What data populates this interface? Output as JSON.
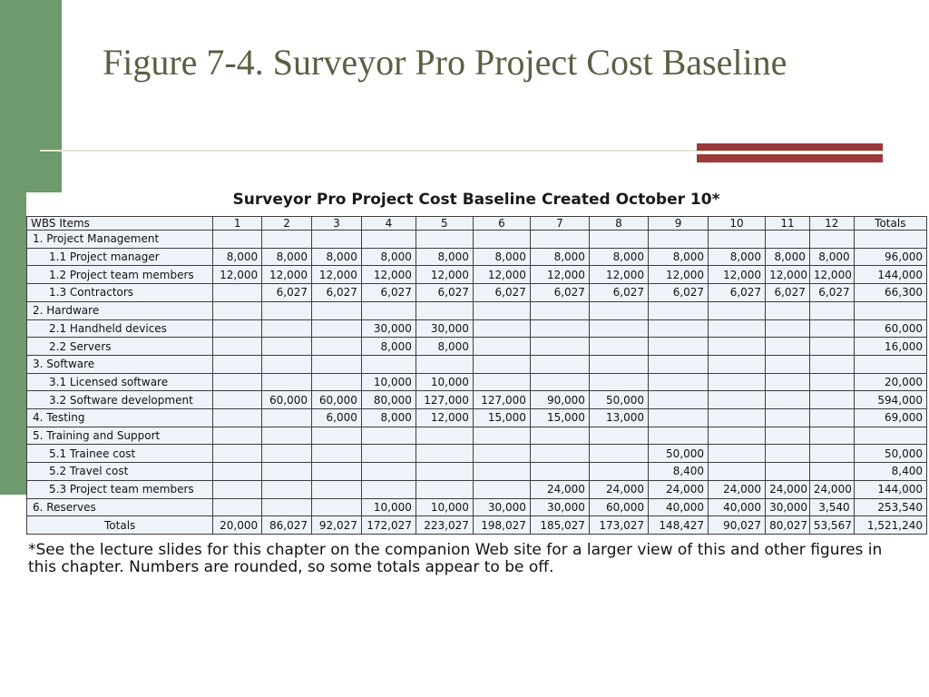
{
  "slide": {
    "title": "Figure 7-4. Surveyor Pro Project Cost Baseline",
    "footnote": "*See the lecture slides for this chapter on the companion Web site for a larger view of this and other figures in this chapter. Numbers are rounded, so some totals appear to be off."
  },
  "table": {
    "title": "Surveyor Pro Project Cost Baseline Created October 10*",
    "headers": [
      "WBS Items",
      "1",
      "2",
      "3",
      "4",
      "5",
      "6",
      "7",
      "8",
      "9",
      "10",
      "11",
      "12",
      "Totals"
    ],
    "rows": [
      {
        "level": "cat",
        "cells": [
          "1.   Project Management",
          "",
          "",
          "",
          "",
          "",
          "",
          "",
          "",
          "",
          "",
          "",
          "",
          ""
        ]
      },
      {
        "level": "sub",
        "cells": [
          "1.1 Project manager",
          "8,000",
          "8,000",
          "8,000",
          "8,000",
          "8,000",
          "8,000",
          "8,000",
          "8,000",
          "8,000",
          "8,000",
          "8,000",
          "8,000",
          "96,000"
        ]
      },
      {
        "level": "sub",
        "cells": [
          "1.2 Project team members",
          "12,000",
          "12,000",
          "12,000",
          "12,000",
          "12,000",
          "12,000",
          "12,000",
          "12,000",
          "12,000",
          "12,000",
          "12,000",
          "12,000",
          "144,000"
        ]
      },
      {
        "level": "sub",
        "cells": [
          "1.3 Contractors",
          "",
          "6,027",
          "6,027",
          "6,027",
          "6,027",
          "6,027",
          "6,027",
          "6,027",
          "6,027",
          "6,027",
          "6,027",
          "6,027",
          "66,300"
        ]
      },
      {
        "level": "cat",
        "cells": [
          "2. Hardware",
          "",
          "",
          "",
          "",
          "",
          "",
          "",
          "",
          "",
          "",
          "",
          "",
          ""
        ]
      },
      {
        "level": "sub",
        "cells": [
          "2.1 Handheld devices",
          "",
          "",
          "",
          "30,000",
          "30,000",
          "",
          "",
          "",
          "",
          "",
          "",
          "",
          "60,000"
        ]
      },
      {
        "level": "sub",
        "cells": [
          "2.2 Servers",
          "",
          "",
          "",
          "8,000",
          "8,000",
          "",
          "",
          "",
          "",
          "",
          "",
          "",
          "16,000"
        ]
      },
      {
        "level": "cat",
        "cells": [
          "3. Software",
          "",
          "",
          "",
          "",
          "",
          "",
          "",
          "",
          "",
          "",
          "",
          "",
          ""
        ]
      },
      {
        "level": "sub",
        "cells": [
          "3.1 Licensed software",
          "",
          "",
          "",
          "10,000",
          "10,000",
          "",
          "",
          "",
          "",
          "",
          "",
          "",
          "20,000"
        ]
      },
      {
        "level": "sub",
        "cells": [
          "3.2 Software development",
          "",
          "60,000",
          "60,000",
          "80,000",
          "127,000",
          "127,000",
          "90,000",
          "50,000",
          "",
          "",
          "",
          "",
          "594,000"
        ]
      },
      {
        "level": "cat",
        "cells": [
          "4. Testing",
          "",
          "",
          "6,000",
          "8,000",
          "12,000",
          "15,000",
          "15,000",
          "13,000",
          "",
          "",
          "",
          "",
          "69,000"
        ]
      },
      {
        "level": "cat",
        "cells": [
          "5. Training and Support",
          "",
          "",
          "",
          "",
          "",
          "",
          "",
          "",
          "",
          "",
          "",
          "",
          ""
        ]
      },
      {
        "level": "sub",
        "cells": [
          "5.1 Trainee cost",
          "",
          "",
          "",
          "",
          "",
          "",
          "",
          "",
          "50,000",
          "",
          "",
          "",
          "50,000"
        ]
      },
      {
        "level": "sub",
        "cells": [
          "5.2 Travel cost",
          "",
          "",
          "",
          "",
          "",
          "",
          "",
          "",
          "8,400",
          "",
          "",
          "",
          "8,400"
        ]
      },
      {
        "level": "sub",
        "cells": [
          "5.3 Project team members",
          "",
          "",
          "",
          "",
          "",
          "",
          "24,000",
          "24,000",
          "24,000",
          "24,000",
          "24,000",
          "24,000",
          "144,000"
        ]
      },
      {
        "level": "cat",
        "cells": [
          "6. Reserves",
          "",
          "",
          "",
          "10,000",
          "10,000",
          "30,000",
          "30,000",
          "60,000",
          "40,000",
          "40,000",
          "30,000",
          "3,540",
          "253,540"
        ]
      },
      {
        "level": "center",
        "cells": [
          "Totals",
          "20,000",
          "86,027",
          "92,027",
          "172,027",
          "223,027",
          "198,027",
          "185,027",
          "173,027",
          "148,427",
          "90,027",
          "80,027",
          "53,567",
          "1,521,240"
        ]
      }
    ]
  }
}
